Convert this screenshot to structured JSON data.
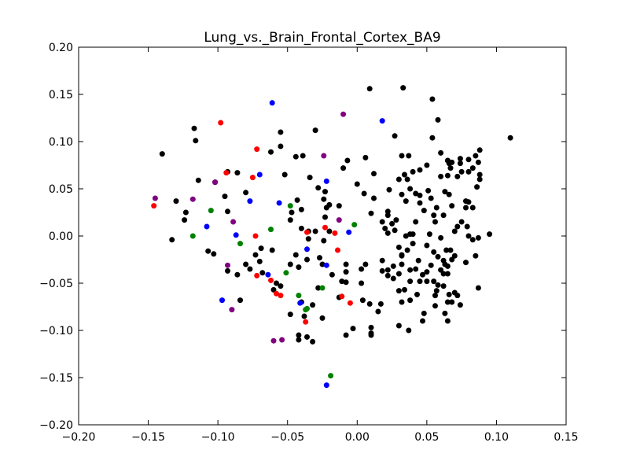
{
  "chart_data": {
    "type": "scatter",
    "title": "Lung_vs._Brain_Frontal_Cortex_BA9",
    "xlabel": "",
    "ylabel": "",
    "xlim": [
      -0.2,
      0.15
    ],
    "ylim": [
      -0.2,
      0.2
    ],
    "x_ticks": [
      -0.2,
      -0.15,
      -0.1,
      -0.05,
      0.0,
      0.05,
      0.1,
      0.15
    ],
    "x_tick_labels": [
      "−0.20",
      "−0.15",
      "−0.10",
      "−0.05",
      "0.00",
      "0.05",
      "0.10",
      "0.15"
    ],
    "y_ticks": [
      -0.2,
      -0.15,
      -0.1,
      -0.05,
      0.0,
      0.05,
      0.1,
      0.15,
      0.2
    ],
    "y_tick_labels": [
      "−0.20",
      "−0.15",
      "−0.10",
      "−0.05",
      "0.00",
      "0.05",
      "0.10",
      "0.15",
      "0.20"
    ],
    "grid": false,
    "legend": "none",
    "series": [
      {
        "color": "#000000",
        "points": [
          [
            -0.14,
            0.087
          ],
          [
            -0.117,
            0.114
          ],
          [
            -0.116,
            0.101
          ],
          [
            -0.13,
            0.037
          ],
          [
            -0.123,
            0.025
          ],
          [
            -0.124,
            0.017
          ],
          [
            -0.133,
            -0.004
          ],
          [
            -0.114,
            0.059
          ],
          [
            -0.102,
            0.057
          ],
          [
            -0.095,
            0.042
          ],
          [
            -0.093,
            0.026
          ],
          [
            -0.107,
            -0.016
          ],
          [
            -0.103,
            -0.019
          ],
          [
            -0.093,
            -0.037
          ],
          [
            -0.086,
            -0.041
          ],
          [
            -0.084,
            -0.068
          ],
          [
            -0.086,
            0.067
          ],
          [
            -0.093,
            0.068
          ],
          [
            -0.08,
            0.046
          ],
          [
            -0.08,
            -0.03
          ],
          [
            -0.073,
            -0.02
          ],
          [
            -0.07,
            -0.027
          ],
          [
            -0.068,
            -0.039
          ],
          [
            -0.077,
            -0.035
          ],
          [
            -0.069,
            -0.013
          ],
          [
            -0.061,
            -0.015
          ],
          [
            -0.058,
            -0.05
          ],
          [
            -0.06,
            -0.057
          ],
          [
            -0.055,
            -0.053
          ],
          [
            -0.062,
            0.089
          ],
          [
            -0.055,
            0.095
          ],
          [
            -0.055,
            0.11
          ],
          [
            -0.052,
            0.065
          ],
          [
            -0.044,
            0.084
          ],
          [
            -0.039,
            0.085
          ],
          [
            -0.043,
            0.038
          ],
          [
            -0.04,
            0.028
          ],
          [
            -0.047,
            0.025
          ],
          [
            -0.048,
            0.017
          ],
          [
            -0.04,
            0.008
          ],
          [
            -0.035,
            0.005
          ],
          [
            -0.03,
            0.005
          ],
          [
            -0.034,
            0.062
          ],
          [
            -0.028,
            0.051
          ],
          [
            -0.023,
            0.047
          ],
          [
            -0.03,
            0.112
          ],
          [
            -0.024,
            0.039
          ],
          [
            -0.022,
            0.03
          ],
          [
            -0.02,
            0.033
          ],
          [
            -0.013,
            0.032
          ],
          [
            -0.023,
            0.02
          ],
          [
            -0.02,
            0.005
          ],
          [
            -0.007,
            0.08
          ],
          [
            -0.01,
            0.072
          ],
          [
            -0.024,
            -0.005
          ],
          [
            -0.035,
            -0.003
          ],
          [
            -0.048,
            -0.03
          ],
          [
            -0.044,
            -0.02
          ],
          [
            -0.042,
            -0.033
          ],
          [
            -0.036,
            -0.025
          ],
          [
            -0.027,
            -0.023
          ],
          [
            -0.025,
            -0.03
          ],
          [
            -0.018,
            -0.041
          ],
          [
            -0.011,
            -0.048
          ],
          [
            -0.013,
            -0.065
          ],
          [
            -0.028,
            -0.055
          ],
          [
            -0.032,
            -0.073
          ],
          [
            -0.04,
            -0.07
          ],
          [
            -0.048,
            -0.083
          ],
          [
            -0.038,
            -0.085
          ],
          [
            -0.025,
            -0.087
          ],
          [
            -0.042,
            -0.105
          ],
          [
            -0.036,
            -0.107
          ],
          [
            -0.032,
            -0.112
          ],
          [
            -0.042,
            -0.11
          ],
          [
            -0.008,
            -0.03
          ],
          [
            -0.008,
            -0.038
          ],
          [
            -0.008,
            -0.049
          ],
          [
            -0.008,
            -0.105
          ],
          [
            -0.003,
            -0.098
          ],
          [
            0.01,
            -0.103
          ],
          [
            0.006,
            -0.03
          ],
          [
            0.003,
            -0.035
          ],
          [
            0.003,
            -0.05
          ],
          [
            0.004,
            -0.068
          ],
          [
            0.009,
            -0.072
          ],
          [
            0.01,
            -0.097
          ],
          [
            0.01,
            -0.105
          ],
          [
            0.015,
            -0.08
          ],
          [
            0.017,
            -0.072
          ],
          [
            0.018,
            -0.037
          ],
          [
            0.018,
            -0.026
          ],
          [
            0.022,
            -0.036
          ],
          [
            0.022,
            -0.042
          ],
          [
            0.026,
            -0.045
          ],
          [
            0.026,
            -0.032
          ],
          [
            0.03,
            -0.04
          ],
          [
            0.032,
            -0.03
          ],
          [
            0.03,
            -0.058
          ],
          [
            0.032,
            -0.07
          ],
          [
            0.03,
            -0.095
          ],
          [
            0.037,
            -0.1
          ],
          [
            0.034,
            -0.057
          ],
          [
            0.038,
            -0.048
          ],
          [
            0.038,
            -0.036
          ],
          [
            0.032,
            -0.021
          ],
          [
            0.036,
            -0.015
          ],
          [
            0.042,
            -0.035
          ],
          [
            0.044,
            -0.026
          ],
          [
            0.045,
            -0.048
          ],
          [
            0.047,
            -0.041
          ],
          [
            0.05,
            -0.038
          ],
          [
            0.05,
            -0.048
          ],
          [
            0.053,
            -0.031
          ],
          [
            0.055,
            -0.048
          ],
          [
            0.057,
            -0.058
          ],
          [
            0.056,
            -0.063
          ],
          [
            0.058,
            -0.052
          ],
          [
            0.056,
            -0.074
          ],
          [
            0.06,
            -0.036
          ],
          [
            0.062,
            -0.026
          ],
          [
            0.065,
            -0.032
          ],
          [
            0.065,
            -0.04
          ],
          [
            0.062,
            -0.04
          ],
          [
            0.062,
            -0.053
          ],
          [
            0.066,
            -0.062
          ],
          [
            0.07,
            -0.06
          ],
          [
            0.072,
            -0.063
          ],
          [
            0.068,
            -0.07
          ],
          [
            0.065,
            -0.07
          ],
          [
            0.05,
            -0.01
          ],
          [
            0.055,
            -0.017
          ],
          [
            0.058,
            -0.022
          ],
          [
            0.064,
            -0.015
          ],
          [
            0.067,
            -0.015
          ],
          [
            0.07,
            -0.021
          ],
          [
            0.068,
            -0.025
          ],
          [
            0.043,
            -0.062
          ],
          [
            0.038,
            -0.068
          ],
          [
            0.048,
            -0.082
          ],
          [
            0.047,
            -0.09
          ],
          [
            0.063,
            -0.082
          ],
          [
            0.04,
            -0.008
          ],
          [
            0.04,
            0.002
          ],
          [
            0.042,
            0.015
          ],
          [
            0.045,
            0.035
          ],
          [
            0.048,
            0.027
          ],
          [
            0.053,
            0.04
          ],
          [
            0.051,
            0.048
          ],
          [
            0.055,
            0.022
          ],
          [
            0.056,
            0.015
          ],
          [
            0.057,
            0.03
          ],
          [
            0.062,
            0.022
          ],
          [
            0.063,
            0.047
          ],
          [
            0.066,
            0.044
          ],
          [
            0.068,
            0.032
          ],
          [
            0.07,
            0.005
          ],
          [
            0.072,
            0.01
          ],
          [
            0.075,
            0.015
          ],
          [
            0.078,
            0.03
          ],
          [
            0.078,
            0.037
          ],
          [
            0.08,
            0.036
          ],
          [
            0.083,
            0.03
          ],
          [
            0.079,
            0.01
          ],
          [
            0.08,
            0.0
          ],
          [
            0.083,
            -0.004
          ],
          [
            0.087,
            -0.002
          ],
          [
            0.095,
            0.002
          ],
          [
            0.087,
            -0.055
          ],
          [
            0.074,
            -0.073
          ],
          [
            0.065,
            -0.09
          ],
          [
            0.072,
            0.063
          ],
          [
            0.074,
            0.077
          ],
          [
            0.074,
            0.082
          ],
          [
            0.075,
            0.068
          ],
          [
            0.08,
            0.068
          ],
          [
            0.08,
            0.081
          ],
          [
            0.083,
            0.072
          ],
          [
            0.087,
            0.078
          ],
          [
            0.088,
            0.091
          ],
          [
            0.085,
            0.085
          ],
          [
            0.088,
            0.065
          ],
          [
            0.088,
            0.06
          ],
          [
            0.086,
            0.052
          ],
          [
            0.065,
            0.08
          ],
          [
            0.066,
            0.077
          ],
          [
            0.067,
            0.072
          ],
          [
            0.068,
            0.078
          ],
          [
            0.06,
            0.088
          ],
          [
            0.06,
            0.063
          ],
          [
            0.065,
            0.064
          ],
          [
            0.058,
            0.123
          ],
          [
            0.054,
            0.145
          ],
          [
            0.054,
            0.104
          ],
          [
            0.05,
            0.075
          ],
          [
            0.04,
            0.068
          ],
          [
            0.037,
            0.085
          ],
          [
            0.036,
            0.06
          ],
          [
            0.038,
            0.05
          ],
          [
            0.042,
            0.045
          ],
          [
            0.045,
            0.043
          ],
          [
            0.03,
            0.06
          ],
          [
            0.027,
            0.106
          ],
          [
            0.032,
            0.085
          ],
          [
            0.034,
            0.065
          ],
          [
            0.032,
            0.044
          ],
          [
            0.023,
            0.049
          ],
          [
            0.018,
            0.015
          ],
          [
            0.02,
            0.008
          ],
          [
            0.022,
            0.003
          ],
          [
            0.025,
            0.013
          ],
          [
            0.027,
            0.006
          ],
          [
            0.028,
            0.017
          ],
          [
            0.03,
            -0.012
          ],
          [
            0.032,
            -0.02
          ],
          [
            0.035,
            0.037
          ],
          [
            0.035,
            0.0
          ],
          [
            0.038,
            0.002
          ],
          [
            0.022,
            0.022
          ],
          [
            0.022,
            0.026
          ],
          [
            0.033,
            0.157
          ],
          [
            0.009,
            0.156
          ],
          [
            0.006,
            0.083
          ],
          [
            0.012,
            0.066
          ],
          [
            0.012,
            0.04
          ],
          [
            0.01,
            0.024
          ],
          [
            0.005,
            0.045
          ],
          [
            0.0,
            0.055
          ],
          [
            0.11,
            0.104
          ],
          [
            0.085,
            -0.021
          ],
          [
            0.078,
            -0.028
          ],
          [
            0.063,
            -0.03
          ],
          [
            0.06,
            -0.002
          ],
          [
            0.052,
            0.002
          ],
          [
            0.045,
            0.07
          ]
        ]
      },
      {
        "color": "#0000ff",
        "points": [
          [
            -0.061,
            0.141
          ],
          [
            0.018,
            0.122
          ],
          [
            -0.07,
            0.065
          ],
          [
            -0.077,
            0.037
          ],
          [
            -0.056,
            0.035
          ],
          [
            -0.022,
            0.058
          ],
          [
            -0.108,
            0.01
          ],
          [
            -0.087,
            0.001
          ],
          [
            -0.036,
            -0.014
          ],
          [
            -0.022,
            -0.031
          ],
          [
            -0.064,
            -0.041
          ],
          [
            -0.097,
            -0.068
          ],
          [
            -0.041,
            -0.071
          ],
          [
            -0.006,
            0.004
          ],
          [
            -0.022,
            -0.158
          ]
        ]
      },
      {
        "color": "#ff0000",
        "points": [
          [
            -0.098,
            0.12
          ],
          [
            -0.072,
            0.092
          ],
          [
            -0.094,
            0.067
          ],
          [
            -0.075,
            0.062
          ],
          [
            -0.146,
            0.032
          ],
          [
            -0.073,
            0.0
          ],
          [
            -0.036,
            0.004
          ],
          [
            -0.023,
            0.009
          ],
          [
            -0.016,
            0.003
          ],
          [
            -0.014,
            -0.015
          ],
          [
            -0.072,
            -0.042
          ],
          [
            -0.062,
            -0.047
          ],
          [
            -0.058,
            -0.061
          ],
          [
            -0.055,
            -0.063
          ],
          [
            -0.011,
            -0.064
          ],
          [
            -0.005,
            -0.071
          ],
          [
            -0.037,
            -0.091
          ]
        ]
      },
      {
        "color": "#008000",
        "points": [
          [
            -0.105,
            0.027
          ],
          [
            -0.048,
            0.032
          ],
          [
            -0.118,
            0.0
          ],
          [
            -0.084,
            -0.008
          ],
          [
            -0.062,
            0.007
          ],
          [
            -0.051,
            -0.039
          ],
          [
            -0.042,
            -0.063
          ],
          [
            -0.037,
            -0.078
          ],
          [
            -0.036,
            -0.077
          ],
          [
            -0.025,
            -0.055
          ],
          [
            -0.002,
            0.012
          ],
          [
            -0.019,
            -0.148
          ]
        ]
      },
      {
        "color": "#800080",
        "points": [
          [
            -0.01,
            0.129
          ],
          [
            -0.024,
            0.085
          ],
          [
            -0.102,
            0.057
          ],
          [
            -0.118,
            0.039
          ],
          [
            -0.145,
            0.04
          ],
          [
            -0.089,
            0.015
          ],
          [
            -0.013,
            0.017
          ],
          [
            -0.093,
            -0.031
          ],
          [
            -0.09,
            -0.078
          ],
          [
            -0.06,
            -0.111
          ],
          [
            -0.054,
            -0.11
          ]
        ]
      }
    ]
  }
}
